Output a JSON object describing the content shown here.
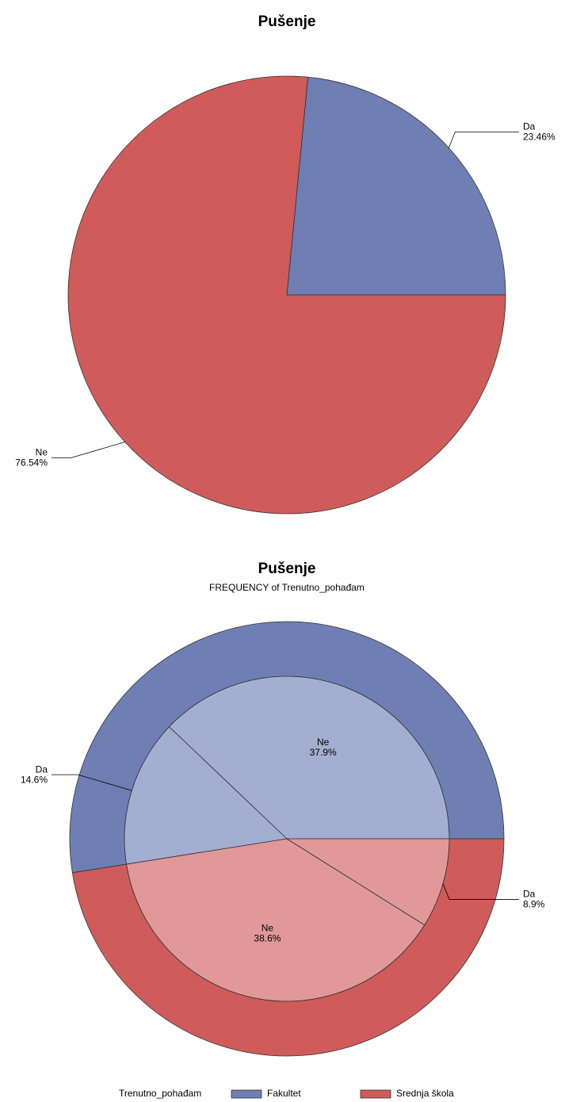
{
  "chart_data": [
    {
      "type": "pie",
      "title": "Pušenje",
      "categories": [
        "Da",
        "Ne"
      ],
      "values": [
        23.46,
        76.54
      ],
      "value_labels": [
        "23.46%",
        "76.54%"
      ],
      "colors": [
        "#6f7fb4",
        "#d05b5b"
      ]
    },
    {
      "type": "nested_pie",
      "title": "Pušenje",
      "subtitle": "FREQUENCY of Trenutno_pohađam",
      "categories": [
        "Ne",
        "Da"
      ],
      "series": [
        {
          "name": "Fakultet",
          "color": "#6f7fb4",
          "values": [
            37.9,
            14.6
          ],
          "value_labels": [
            "37.9%",
            "14.6%"
          ]
        },
        {
          "name": "Srednja škola",
          "color": "#d05b5b",
          "values": [
            38.6,
            8.9
          ],
          "value_labels": [
            "38.6%",
            "8.9%"
          ]
        }
      ],
      "legend_title": "Trenutno_pohađam",
      "legend": "bottom"
    }
  ]
}
